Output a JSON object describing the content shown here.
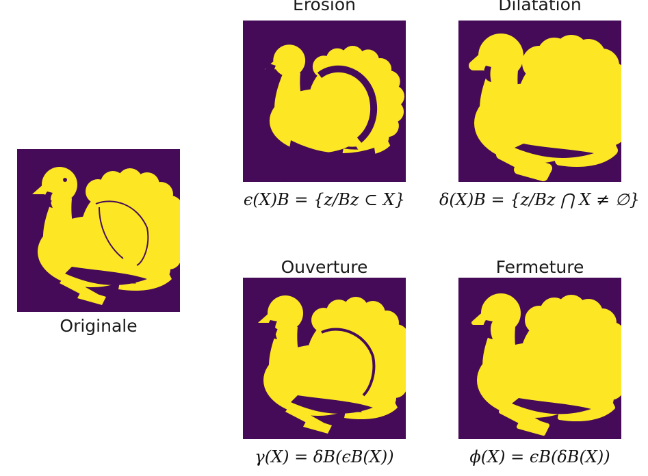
{
  "colors": {
    "background": "#450b58",
    "foreground": "#fde724"
  },
  "panels": {
    "original": {
      "label": "Originale"
    },
    "erosion": {
      "title": "Erosion",
      "formula": "ϵ(X)B = {z/Bz ⊂ X}"
    },
    "dilation": {
      "title": "Dilatation",
      "formula": "δ(X)B = {z/Bz ⋂ X ≠ ∅}"
    },
    "opening": {
      "title": "Ouverture",
      "formula": "γ(X) = δB(ϵB(X))"
    },
    "closing": {
      "title": "Fermeture",
      "formula": "ϕ(X) = ϵB(δB(X))"
    }
  }
}
